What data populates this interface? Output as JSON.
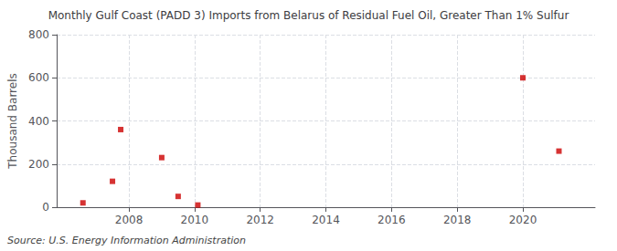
{
  "chart_data": {
    "type": "scatter",
    "title": "Monthly Gulf Coast (PADD 3) Imports from Belarus of Residual Fuel Oil, Greater Than 1% Sulfur",
    "ylabel": "Thousand Barrels",
    "annotation": "Source: U.S. Energy Information Administration",
    "x": [
      2006.6,
      2007.5,
      2007.75,
      2009.0,
      2009.5,
      2010.1,
      2020.0,
      2021.1
    ],
    "values": [
      20,
      120,
      360,
      230,
      50,
      10,
      600,
      260
    ],
    "color": "#cc0000",
    "marker": "square",
    "xlim": [
      2005.8,
      2022.2
    ],
    "xticks": [
      2008,
      2010,
      2012,
      2014,
      2016,
      2018,
      2020
    ],
    "ylim": [
      0,
      800
    ],
    "yticks": [
      0,
      200,
      400,
      600,
      800
    ],
    "grid": true
  }
}
